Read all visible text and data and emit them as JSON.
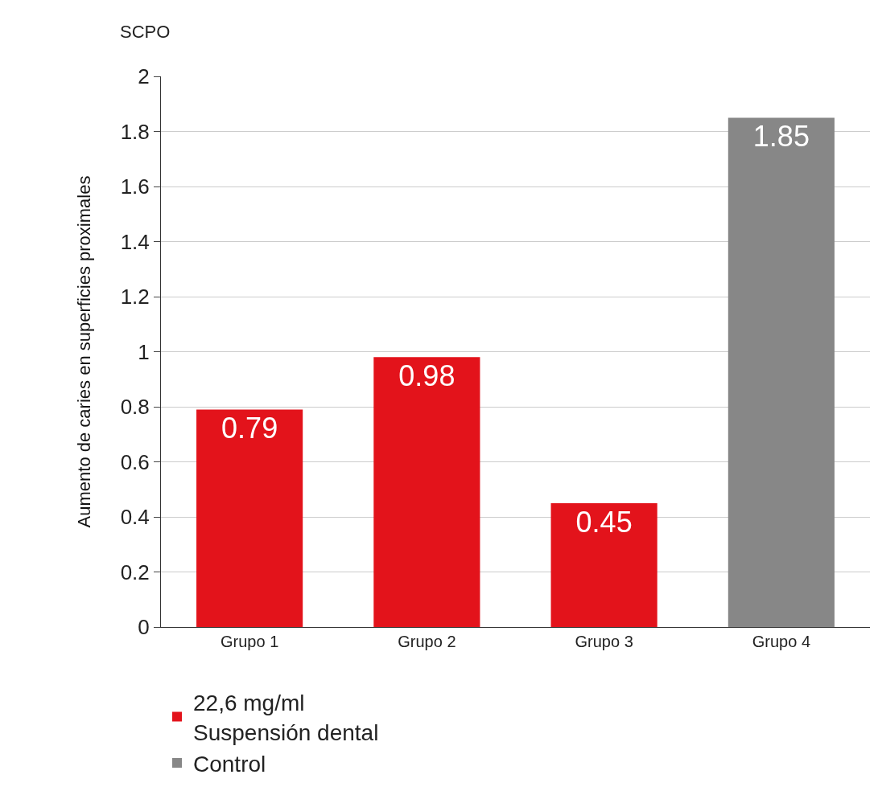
{
  "chart_data": {
    "type": "bar",
    "ylabel": "Aumento de caries en superficies proximales",
    "annotations": [
      "SCPO"
    ],
    "categories": [
      "Grupo 1",
      "Grupo 2",
      "Grupo 3",
      "Grupo 4"
    ],
    "series": [
      {
        "name": "22,6 mg/ml\nSuspensión dental",
        "color": "#e3131b",
        "values": [
          0.79,
          0.98,
          0.45,
          null
        ]
      },
      {
        "name": "Control",
        "color": "#878787",
        "values": [
          null,
          null,
          null,
          1.85
        ]
      }
    ],
    "ylim": [
      0,
      2
    ],
    "yticks": [
      0,
      0.2,
      0.4,
      0.6,
      0.8,
      1,
      1.2,
      1.4,
      1.6,
      1.8,
      2
    ],
    "grid": "y",
    "legend": "bottom",
    "data_labels": true
  }
}
